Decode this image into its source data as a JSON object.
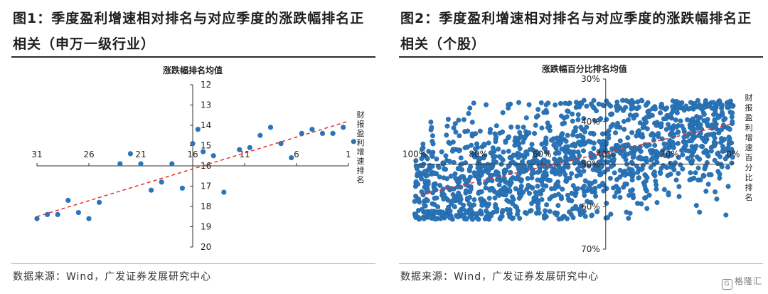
{
  "left_panel": {
    "title": "图1：季度盈利增速相对排名与对应季度的涨跌幅排名正相关（申万一级行业）",
    "source": "数据来源：Wind，广发证券发展研究中心"
  },
  "right_panel": {
    "title": "图2：季度盈利增速相对排名与对应季度的涨跌幅排名正相关（个股）",
    "source": "数据来源：Wind，广发证券发展研究中心"
  },
  "watermark": {
    "icon": "G",
    "text": "格隆汇"
  },
  "colors": {
    "points": "#2a75b9",
    "trend": "#e0302a",
    "axis": "#333333"
  },
  "chart_data": [
    {
      "type": "scatter",
      "title": "",
      "xlabel": "财报盈利增速排名",
      "ylabel": "涨跌幅排名均值",
      "x_reversed": true,
      "y_reversed": true,
      "xlim": [
        31,
        1
      ],
      "ylim": [
        12,
        20
      ],
      "x_ticks": [
        31,
        26,
        21,
        16,
        11,
        6,
        1
      ],
      "y_ticks": [
        12,
        13,
        14,
        15,
        16,
        17,
        18,
        19,
        20
      ],
      "axis_cross": {
        "x": 16,
        "y": 16
      },
      "trend_line": {
        "from": [
          31,
          18.5
        ],
        "to": [
          1,
          13.8
        ]
      },
      "series": [
        {
          "points": [
            [
              31,
              18.6
            ],
            [
              30,
              18.4
            ],
            [
              29,
              18.4
            ],
            [
              28,
              17.7
            ],
            [
              27,
              18.3
            ],
            [
              26,
              18.6
            ],
            [
              25,
              17.8
            ],
            [
              23,
              15.9
            ],
            [
              22,
              15.4
            ],
            [
              21,
              15.9
            ],
            [
              20,
              17.2
            ],
            [
              19,
              16.8
            ],
            [
              18,
              15.9
            ],
            [
              17,
              17.1
            ],
            [
              16,
              14.9
            ],
            [
              15.5,
              14.2
            ],
            [
              15,
              15.3
            ],
            [
              14,
              15.5
            ],
            [
              13,
              17.3
            ],
            [
              11.5,
              15.2
            ],
            [
              10.5,
              15.1
            ],
            [
              9.5,
              14.5
            ],
            [
              8.5,
              14.1
            ],
            [
              7.5,
              14.9
            ],
            [
              6.5,
              15.6
            ],
            [
              5.5,
              14.4
            ],
            [
              4.5,
              14.2
            ],
            [
              3.5,
              14.4
            ],
            [
              2.5,
              14.4
            ],
            [
              1.5,
              14.1
            ],
            [
              0.5,
              14.8
            ]
          ]
        }
      ]
    },
    {
      "type": "scatter",
      "title": "",
      "xlabel": "财报盈利增速百分比排名",
      "ylabel": "涨跌幅百分比排名均值",
      "x_reversed": true,
      "y_reversed": true,
      "xlim": [
        100,
        0
      ],
      "ylim": [
        30,
        70
      ],
      "x_tick_labels": [
        "100%",
        "80%",
        "60%",
        "40%",
        "20%",
        "0%"
      ],
      "x_ticks": [
        100,
        80,
        60,
        40,
        20,
        0
      ],
      "y_tick_labels": [
        "30%",
        "40%",
        "50%",
        "60%",
        "70%"
      ],
      "y_ticks": [
        30,
        40,
        50,
        60,
        70
      ],
      "axis_cross": {
        "x": 40,
        "y": 50
      },
      "trend_line": {
        "from": [
          100,
          57.5
        ],
        "to": [
          0,
          40.5
        ]
      },
      "series": [
        {
          "description": "dense cloud of individual stocks",
          "trend_mean_at_x100": 57.5,
          "trend_mean_at_x0": 40.5,
          "spread_pct_points": 9
        }
      ]
    }
  ]
}
